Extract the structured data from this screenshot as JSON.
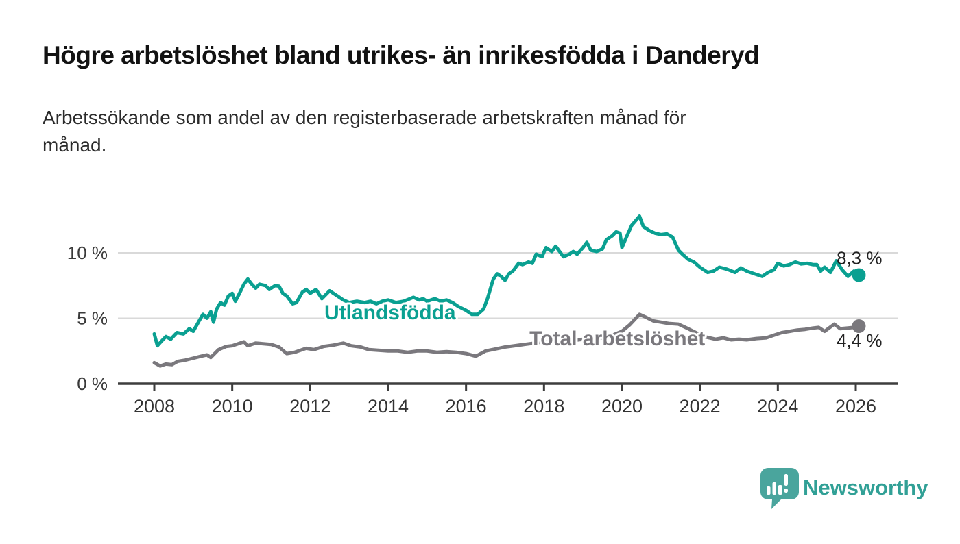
{
  "header": {
    "title": "Högre arbetslöshet bland utrikes- än inrikesfödda i Danderyd",
    "subtitle": "Arbetssökande som andel av den registerbaserade arbetskraften månad för månad."
  },
  "branding": {
    "logo_text": "Newsworthy",
    "logo_icon": "speech-bubble-bar-chart-icon",
    "logo_color": "#4aa59d",
    "logo_text_color": "#31a096"
  },
  "colors": {
    "series_foreign_born": "#0aa091",
    "series_total": "#7a787d",
    "grid": "#d9d9d9",
    "axis": "#3d3d3d",
    "value_label": "#222222"
  },
  "chart_data": {
    "type": "line",
    "title": "Högre arbetslöshet bland utrikes- än inrikesfödda i Danderyd",
    "subtitle": "Arbetssökande som andel av den registerbaserade arbetskraften månad för månad.",
    "unit": "%",
    "grid": "horizontal-only",
    "legend_position": "inline-labels-on-chart",
    "x_axis": {
      "ticks": [
        2008,
        2010,
        2012,
        2014,
        2016,
        2018,
        2020,
        2022,
        2024,
        2026
      ],
      "labels": [
        "2008",
        "2010",
        "2012",
        "2014",
        "2016",
        "2018",
        "2020",
        "2022",
        "2024",
        "2026"
      ],
      "xlim": [
        2007.1,
        2027.1
      ]
    },
    "y_axis": {
      "ticks": [
        {
          "value": 0,
          "label": "0 %"
        },
        {
          "value": 5,
          "label": "5 %"
        },
        {
          "value": 10,
          "label": "10 %"
        }
      ],
      "gridlines": [
        5,
        10
      ],
      "ylim": [
        0,
        13.6
      ]
    },
    "series": [
      {
        "id": "utlandsfodda",
        "name": "Utlandsfödda",
        "color": "#0aa091",
        "end_value_label": "8,3 %",
        "end_value": 8.3,
        "end_label_offset": [
          34,
          -16
        ],
        "inline_label": {
          "x": 2014.05,
          "y": 5.45
        },
        "points": [
          [
            2008.0,
            3.8
          ],
          [
            2008.08,
            2.9
          ],
          [
            2008.2,
            3.3
          ],
          [
            2008.3,
            3.6
          ],
          [
            2008.42,
            3.4
          ],
          [
            2008.58,
            3.9
          ],
          [
            2008.75,
            3.8
          ],
          [
            2008.9,
            4.2
          ],
          [
            2009.0,
            4.0
          ],
          [
            2009.15,
            4.8
          ],
          [
            2009.25,
            5.3
          ],
          [
            2009.35,
            5.0
          ],
          [
            2009.45,
            5.5
          ],
          [
            2009.52,
            4.7
          ],
          [
            2009.6,
            5.7
          ],
          [
            2009.7,
            6.2
          ],
          [
            2009.8,
            6.0
          ],
          [
            2009.9,
            6.7
          ],
          [
            2010.0,
            6.9
          ],
          [
            2010.08,
            6.3
          ],
          [
            2010.17,
            6.8
          ],
          [
            2010.3,
            7.6
          ],
          [
            2010.4,
            8.0
          ],
          [
            2010.5,
            7.6
          ],
          [
            2010.6,
            7.3
          ],
          [
            2010.7,
            7.6
          ],
          [
            2010.85,
            7.5
          ],
          [
            2010.95,
            7.2
          ],
          [
            2011.1,
            7.5
          ],
          [
            2011.2,
            7.45
          ],
          [
            2011.3,
            6.9
          ],
          [
            2011.4,
            6.7
          ],
          [
            2011.55,
            6.1
          ],
          [
            2011.65,
            6.2
          ],
          [
            2011.8,
            7.0
          ],
          [
            2011.9,
            7.2
          ],
          [
            2012.0,
            6.9
          ],
          [
            2012.15,
            7.2
          ],
          [
            2012.3,
            6.5
          ],
          [
            2012.5,
            7.1
          ],
          [
            2012.7,
            6.7
          ],
          [
            2012.85,
            6.4
          ],
          [
            2013.0,
            6.2
          ],
          [
            2013.2,
            6.3
          ],
          [
            2013.4,
            6.2
          ],
          [
            2013.55,
            6.3
          ],
          [
            2013.7,
            6.1
          ],
          [
            2013.85,
            6.3
          ],
          [
            2014.0,
            6.4
          ],
          [
            2014.2,
            6.2
          ],
          [
            2014.4,
            6.3
          ],
          [
            2014.65,
            6.6
          ],
          [
            2014.8,
            6.4
          ],
          [
            2014.9,
            6.5
          ],
          [
            2015.0,
            6.3
          ],
          [
            2015.2,
            6.5
          ],
          [
            2015.35,
            6.3
          ],
          [
            2015.5,
            6.4
          ],
          [
            2015.65,
            6.2
          ],
          [
            2015.8,
            5.9
          ],
          [
            2016.0,
            5.6
          ],
          [
            2016.15,
            5.3
          ],
          [
            2016.3,
            5.3
          ],
          [
            2016.45,
            5.7
          ],
          [
            2016.55,
            6.5
          ],
          [
            2016.7,
            8.0
          ],
          [
            2016.8,
            8.4
          ],
          [
            2016.9,
            8.2
          ],
          [
            2017.0,
            7.9
          ],
          [
            2017.1,
            8.4
          ],
          [
            2017.2,
            8.6
          ],
          [
            2017.35,
            9.2
          ],
          [
            2017.45,
            9.1
          ],
          [
            2017.6,
            9.3
          ],
          [
            2017.7,
            9.2
          ],
          [
            2017.8,
            9.9
          ],
          [
            2017.95,
            9.7
          ],
          [
            2018.05,
            10.4
          ],
          [
            2018.2,
            10.1
          ],
          [
            2018.3,
            10.5
          ],
          [
            2018.4,
            10.1
          ],
          [
            2018.5,
            9.7
          ],
          [
            2018.65,
            9.9
          ],
          [
            2018.75,
            10.1
          ],
          [
            2018.85,
            9.9
          ],
          [
            2019.0,
            10.4
          ],
          [
            2019.1,
            10.8
          ],
          [
            2019.2,
            10.2
          ],
          [
            2019.35,
            10.1
          ],
          [
            2019.5,
            10.3
          ],
          [
            2019.6,
            11.0
          ],
          [
            2019.75,
            11.3
          ],
          [
            2019.85,
            11.6
          ],
          [
            2019.95,
            11.5
          ],
          [
            2020.0,
            10.4
          ],
          [
            2020.1,
            11.1
          ],
          [
            2020.25,
            12.1
          ],
          [
            2020.45,
            12.8
          ],
          [
            2020.55,
            12.0
          ],
          [
            2020.7,
            11.7
          ],
          [
            2020.85,
            11.5
          ],
          [
            2021.0,
            11.4
          ],
          [
            2021.15,
            11.45
          ],
          [
            2021.3,
            11.2
          ],
          [
            2021.45,
            10.2
          ],
          [
            2021.55,
            9.9
          ],
          [
            2021.7,
            9.5
          ],
          [
            2021.85,
            9.3
          ],
          [
            2022.0,
            8.9
          ],
          [
            2022.2,
            8.5
          ],
          [
            2022.35,
            8.6
          ],
          [
            2022.5,
            8.9
          ],
          [
            2022.7,
            8.75
          ],
          [
            2022.9,
            8.5
          ],
          [
            2023.05,
            8.85
          ],
          [
            2023.2,
            8.6
          ],
          [
            2023.4,
            8.4
          ],
          [
            2023.6,
            8.2
          ],
          [
            2023.75,
            8.5
          ],
          [
            2023.9,
            8.7
          ],
          [
            2024.0,
            9.2
          ],
          [
            2024.15,
            9.0
          ],
          [
            2024.3,
            9.1
          ],
          [
            2024.45,
            9.3
          ],
          [
            2024.6,
            9.15
          ],
          [
            2024.75,
            9.2
          ],
          [
            2024.9,
            9.1
          ],
          [
            2025.0,
            9.1
          ],
          [
            2025.1,
            8.6
          ],
          [
            2025.2,
            8.9
          ],
          [
            2025.35,
            8.5
          ],
          [
            2025.5,
            9.4
          ],
          [
            2025.65,
            8.7
          ],
          [
            2025.8,
            8.2
          ],
          [
            2025.95,
            8.6
          ],
          [
            2026.08,
            8.3
          ]
        ]
      },
      {
        "id": "total",
        "name": "Total arbetslöshet",
        "color": "#7a787d",
        "end_value_label": "4,4 %",
        "end_value": 4.4,
        "end_label_offset": [
          34,
          30
        ],
        "inline_label": {
          "x": 2019.88,
          "y": 3.45
        },
        "points": [
          [
            2008.0,
            1.6
          ],
          [
            2008.15,
            1.35
          ],
          [
            2008.3,
            1.5
          ],
          [
            2008.45,
            1.45
          ],
          [
            2008.6,
            1.7
          ],
          [
            2008.8,
            1.8
          ],
          [
            2009.0,
            1.95
          ],
          [
            2009.2,
            2.1
          ],
          [
            2009.35,
            2.2
          ],
          [
            2009.45,
            2.0
          ],
          [
            2009.65,
            2.6
          ],
          [
            2009.85,
            2.85
          ],
          [
            2010.0,
            2.9
          ],
          [
            2010.15,
            3.05
          ],
          [
            2010.3,
            3.2
          ],
          [
            2010.4,
            2.9
          ],
          [
            2010.6,
            3.1
          ],
          [
            2010.8,
            3.05
          ],
          [
            2011.0,
            3.0
          ],
          [
            2011.2,
            2.8
          ],
          [
            2011.4,
            2.3
          ],
          [
            2011.6,
            2.4
          ],
          [
            2011.8,
            2.6
          ],
          [
            2011.9,
            2.7
          ],
          [
            2012.1,
            2.6
          ],
          [
            2012.35,
            2.85
          ],
          [
            2012.6,
            2.95
          ],
          [
            2012.85,
            3.1
          ],
          [
            2013.05,
            2.9
          ],
          [
            2013.3,
            2.8
          ],
          [
            2013.5,
            2.6
          ],
          [
            2013.75,
            2.55
          ],
          [
            2014.0,
            2.5
          ],
          [
            2014.25,
            2.5
          ],
          [
            2014.5,
            2.4
          ],
          [
            2014.75,
            2.5
          ],
          [
            2015.0,
            2.5
          ],
          [
            2015.25,
            2.4
          ],
          [
            2015.5,
            2.45
          ],
          [
            2015.75,
            2.4
          ],
          [
            2016.0,
            2.3
          ],
          [
            2016.25,
            2.1
          ],
          [
            2016.5,
            2.5
          ],
          [
            2016.75,
            2.65
          ],
          [
            2017.0,
            2.8
          ],
          [
            2017.25,
            2.9
          ],
          [
            2017.5,
            3.0
          ],
          [
            2017.75,
            3.1
          ],
          [
            2018.0,
            3.2
          ],
          [
            2018.25,
            3.2
          ],
          [
            2018.5,
            3.3
          ],
          [
            2018.75,
            3.3
          ],
          [
            2019.0,
            3.4
          ],
          [
            2019.25,
            3.4
          ],
          [
            2019.5,
            3.5
          ],
          [
            2019.75,
            3.7
          ],
          [
            2020.0,
            4.0
          ],
          [
            2020.2,
            4.5
          ],
          [
            2020.45,
            5.3
          ],
          [
            2020.6,
            5.1
          ],
          [
            2020.8,
            4.8
          ],
          [
            2021.0,
            4.7
          ],
          [
            2021.2,
            4.6
          ],
          [
            2021.45,
            4.55
          ],
          [
            2021.7,
            4.2
          ],
          [
            2021.9,
            3.9
          ],
          [
            2022.1,
            3.6
          ],
          [
            2022.4,
            3.4
          ],
          [
            2022.6,
            3.5
          ],
          [
            2022.8,
            3.35
          ],
          [
            2023.0,
            3.4
          ],
          [
            2023.2,
            3.35
          ],
          [
            2023.45,
            3.45
          ],
          [
            2023.7,
            3.5
          ],
          [
            2023.9,
            3.7
          ],
          [
            2024.1,
            3.9
          ],
          [
            2024.3,
            4.0
          ],
          [
            2024.5,
            4.1
          ],
          [
            2024.7,
            4.15
          ],
          [
            2024.9,
            4.25
          ],
          [
            2025.05,
            4.3
          ],
          [
            2025.2,
            4.0
          ],
          [
            2025.45,
            4.55
          ],
          [
            2025.6,
            4.2
          ],
          [
            2025.8,
            4.25
          ],
          [
            2025.95,
            4.3
          ],
          [
            2026.08,
            4.4
          ]
        ]
      }
    ]
  }
}
